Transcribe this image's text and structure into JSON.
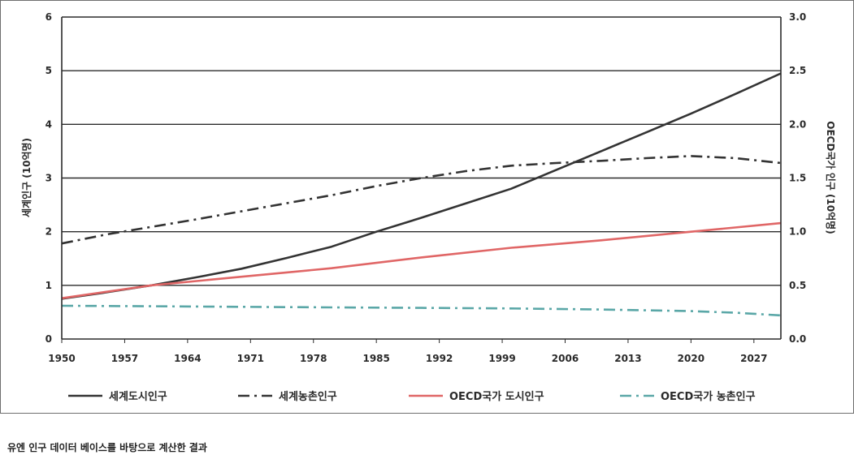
{
  "chart_data": {
    "type": "line",
    "title": "",
    "xlabel": "",
    "ylabel_left": "세계인구 (10억명)",
    "ylabel_right": "OECD국가 인구 (10억명)",
    "xlim": [
      1950,
      2030
    ],
    "ylim_left": [
      0,
      6
    ],
    "ylim_right": [
      0,
      3.0
    ],
    "x_ticks": [
      "1950",
      "1957",
      "1964",
      "1971",
      "1978",
      "1985",
      "1992",
      "1999",
      "2006",
      "2013",
      "2020",
      "2027"
    ],
    "y_ticks_left": [
      "0",
      "1",
      "2",
      "3",
      "4",
      "5",
      "6"
    ],
    "y_ticks_right": [
      "0.0",
      "0.5",
      "1.0",
      "1.5",
      "2.0",
      "2.5",
      "3.0"
    ],
    "grid": true,
    "legend_position": "bottom",
    "series": [
      {
        "name": "세계도시인구",
        "axis": "left",
        "style": "solid",
        "color": "#333333",
        "x": [
          1950,
          1955,
          1960,
          1965,
          1970,
          1975,
          1980,
          1985,
          1990,
          1995,
          2000,
          2005,
          2010,
          2015,
          2020,
          2025,
          2030
        ],
        "values": [
          0.75,
          0.87,
          1.0,
          1.15,
          1.31,
          1.51,
          1.72,
          2.0,
          2.26,
          2.53,
          2.8,
          3.15,
          3.5,
          3.85,
          4.2,
          4.57,
          4.95
        ]
      },
      {
        "name": "세계농촌인구",
        "axis": "left",
        "style": "dash-dot",
        "color": "#333333",
        "x": [
          1950,
          1955,
          1960,
          1965,
          1970,
          1975,
          1980,
          1985,
          1990,
          1995,
          2000,
          2005,
          2010,
          2015,
          2020,
          2025,
          2030
        ],
        "values": [
          1.78,
          1.95,
          2.09,
          2.23,
          2.38,
          2.53,
          2.68,
          2.85,
          3.0,
          3.13,
          3.23,
          3.28,
          3.32,
          3.37,
          3.41,
          3.37,
          3.28
        ]
      },
      {
        "name": "OECD국가 도시인구",
        "axis": "right",
        "style": "solid",
        "color": "#e06666",
        "x": [
          1950,
          1960,
          1970,
          1980,
          1990,
          2000,
          2010,
          2020,
          2030
        ],
        "values": [
          0.38,
          0.5,
          0.58,
          0.66,
          0.76,
          0.85,
          0.92,
          1.0,
          1.08
        ]
      },
      {
        "name": "OECD국가 농촌인구",
        "axis": "right",
        "style": "dash-dot",
        "color": "#5aa7a7",
        "x": [
          1950,
          1960,
          1970,
          1980,
          1990,
          2000,
          2010,
          2020,
          2025,
          2030
        ],
        "values": [
          0.31,
          0.305,
          0.3,
          0.295,
          0.29,
          0.285,
          0.275,
          0.26,
          0.245,
          0.22
        ]
      }
    ]
  },
  "source_note": "유엔 인구 데이터 베이스를 바탕으로 계산한 결과"
}
